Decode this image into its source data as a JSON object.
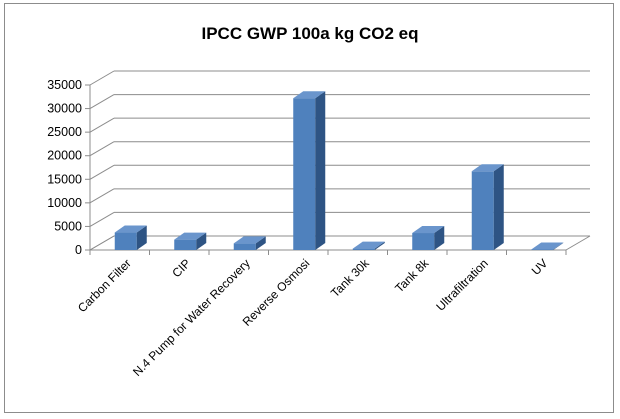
{
  "chart_data": {
    "type": "bar",
    "title": "IPCC GWP 100a kg CO2 eq",
    "categories": [
      "Carbon Filter",
      "CIP",
      "N.4 Pump for Water Recovery",
      "Reverse Osmosi",
      "Tank 30k",
      "Tank 8k",
      "Ultrafiltration",
      "UV"
    ],
    "values": [
      3700,
      2200,
      1400,
      32200,
      300,
      3600,
      16700,
      100
    ],
    "ylim": [
      0,
      35000
    ],
    "yticks": [
      "0",
      "5000",
      "10000",
      "15000",
      "20000",
      "25000",
      "30000",
      "35000"
    ],
    "grid": true,
    "legend": "none",
    "style": "3d-column",
    "colors": {
      "front": "#4f81bd",
      "top": "#6a95cc",
      "side": "#2e5484",
      "grid": "#8c8c8c"
    }
  }
}
